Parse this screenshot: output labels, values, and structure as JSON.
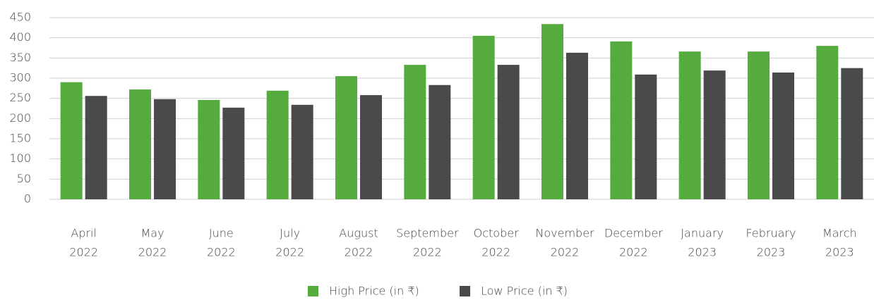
{
  "chart_data": {
    "type": "bar",
    "categories": [
      [
        "April",
        "2022"
      ],
      [
        "May",
        "2022"
      ],
      [
        "June",
        "2022"
      ],
      [
        "July",
        "2022"
      ],
      [
        "August",
        "2022"
      ],
      [
        "September",
        "2022"
      ],
      [
        "October",
        "2022"
      ],
      [
        "November",
        "2022"
      ],
      [
        "December",
        "2022"
      ],
      [
        "January",
        "2023"
      ],
      [
        "February",
        "2023"
      ],
      [
        "March",
        "2023"
      ]
    ],
    "series": [
      {
        "name": "High Price (in ₹)",
        "color": "#56ab3f",
        "values": [
          290,
          272,
          246,
          269,
          305,
          333,
          405,
          434,
          391,
          366,
          366,
          380
        ]
      },
      {
        "name": "Low Price (in ₹)",
        "color": "#4a4a4c",
        "values": [
          256,
          248,
          227,
          234,
          258,
          283,
          333,
          363,
          309,
          319,
          314,
          325
        ]
      }
    ],
    "ylim": [
      0,
      450
    ],
    "yticks": [
      0,
      50,
      100,
      150,
      200,
      250,
      300,
      350,
      400,
      450
    ],
    "grid": true,
    "legend": "bottom"
  }
}
